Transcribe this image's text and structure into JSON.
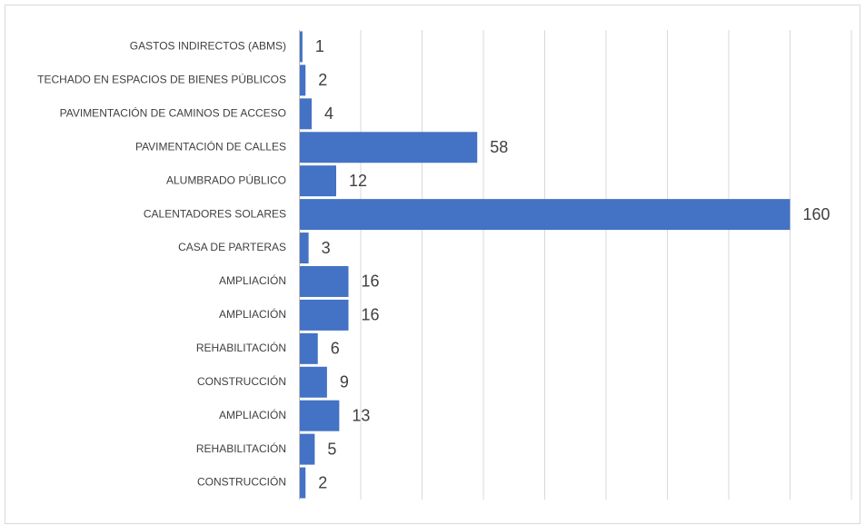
{
  "chart_data": {
    "type": "barh",
    "categories": [
      "GASTOS INDIRECTOS (ABMS)",
      "TECHADO EN ESPACIOS DE BIENES PÚBLICOS",
      "PAVIMENTACIÓN DE CAMINOS DE ACCESO",
      "PAVIMENTACIÓN DE CALLES",
      "ALUMBRADO PÚBLICO",
      "CALENTADORES SOLARES",
      "CASA DE PARTERAS",
      "AMPLIACIÓN",
      "AMPLIACIÓN",
      "REHABILITACIÓN",
      "CONSTRUCCIÓN",
      "AMPLIACIÓN",
      "REHABILITACIÓN",
      "CONSTRUCCIÓN"
    ],
    "values": [
      1,
      2,
      4,
      58,
      12,
      160,
      3,
      16,
      16,
      6,
      9,
      13,
      5,
      2
    ],
    "color": "#4472c4",
    "xlim": [
      0,
      180
    ],
    "xticks": [
      0,
      20,
      40,
      60,
      80,
      100,
      120,
      140,
      160,
      180
    ],
    "grid": true
  }
}
